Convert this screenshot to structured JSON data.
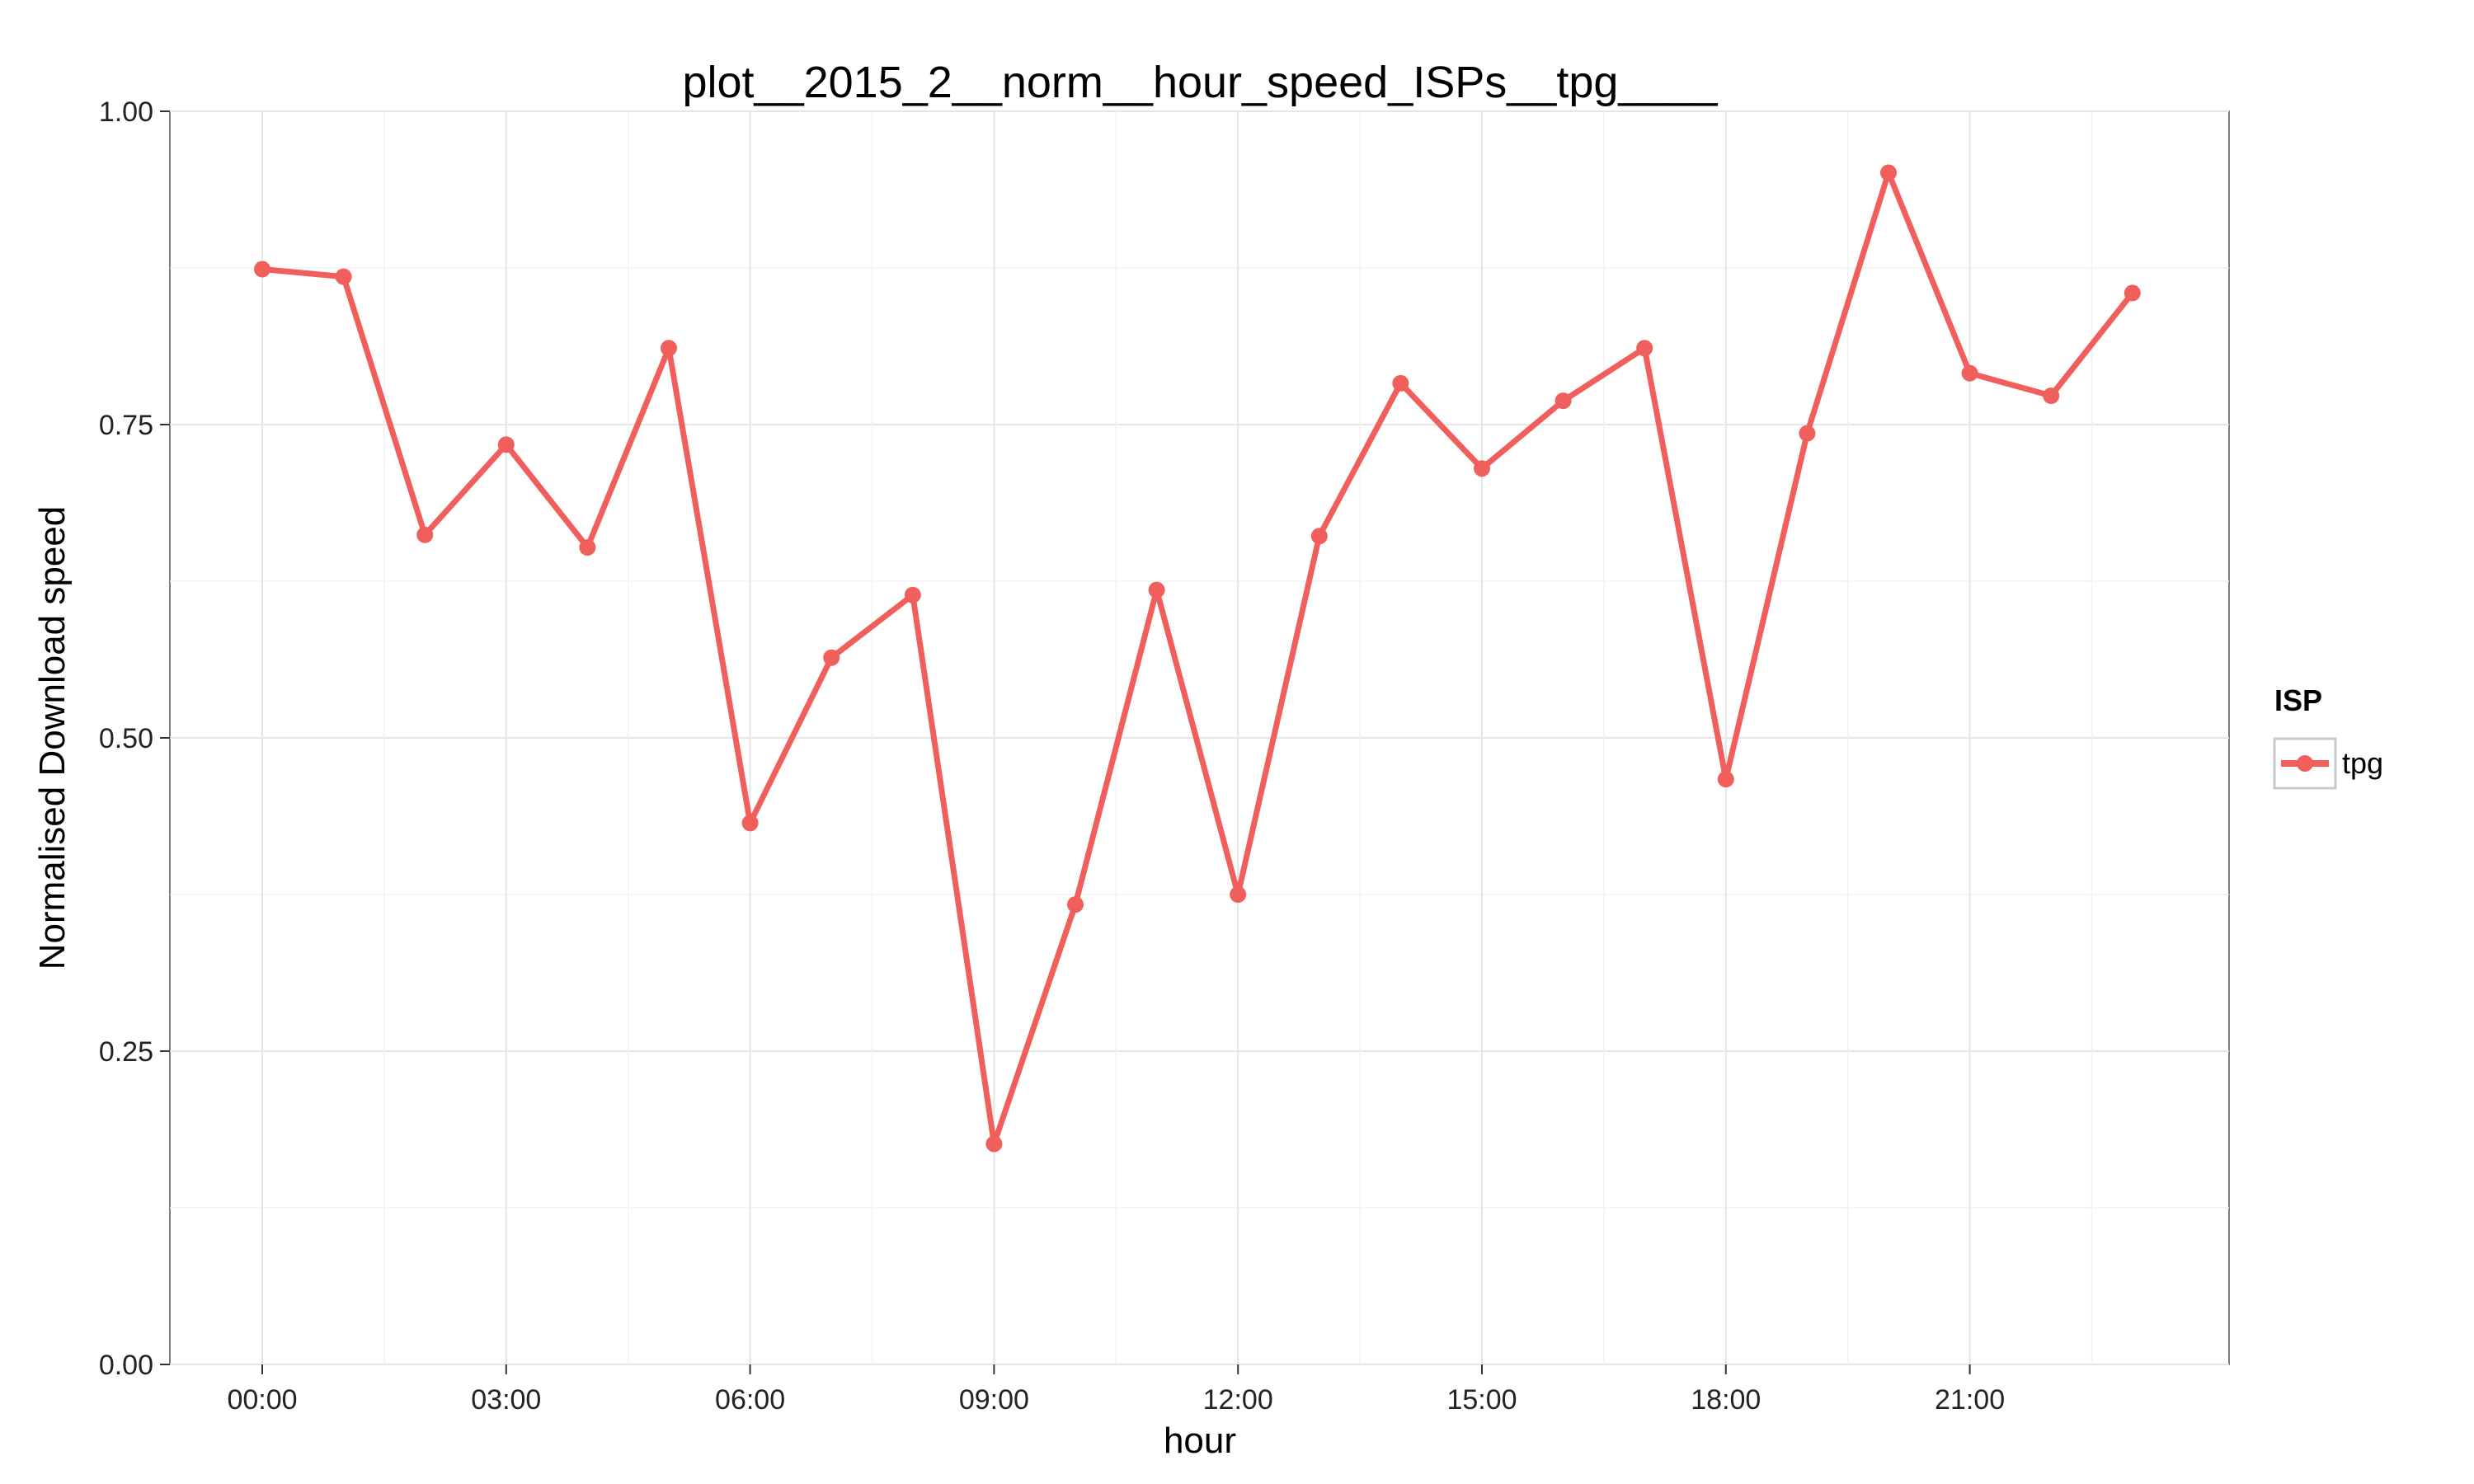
{
  "chart_data": {
    "type": "line",
    "title": "plot__2015_2__norm__hour_speed_ISPs__tpg____",
    "xlabel": "hour",
    "ylabel": "Normalised Download speed",
    "x": [
      "00:00",
      "01:00",
      "02:00",
      "03:00",
      "04:00",
      "05:00",
      "06:00",
      "07:00",
      "08:00",
      "09:00",
      "10:00",
      "11:00",
      "12:00",
      "13:00",
      "14:00",
      "15:00",
      "16:00",
      "17:00",
      "18:00",
      "19:00",
      "20:00",
      "21:00",
      "22:00",
      "23:00"
    ],
    "x_tick_labels": [
      "00:00",
      "03:00",
      "06:00",
      "09:00",
      "12:00",
      "15:00",
      "18:00",
      "21:00"
    ],
    "y_tick_labels": [
      "0.00",
      "0.25",
      "0.50",
      "0.75",
      "1.00"
    ],
    "ylim": [
      0,
      1
    ],
    "grid": true,
    "legend": {
      "title": "ISP",
      "position": "right"
    },
    "series": [
      {
        "name": "tpg",
        "color": "#F15F5C",
        "values": [
          0.874,
          0.868,
          0.662,
          0.734,
          0.652,
          0.811,
          0.432,
          0.564,
          0.614,
          0.176,
          0.367,
          0.618,
          0.375,
          0.661,
          0.783,
          0.715,
          0.769,
          0.811,
          0.467,
          0.743,
          0.951,
          0.791,
          0.773,
          0.855
        ]
      }
    ]
  }
}
